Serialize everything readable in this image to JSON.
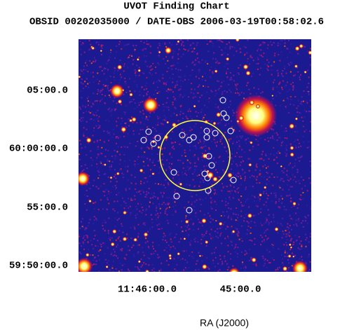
{
  "header": {
    "title": "UVOT Finding Chart",
    "subtitle": "OBSID 00202035000 / DATE-OBS 2006-03-19T00:58:02.6"
  },
  "axes": {
    "y_ticks": [
      "05:00.0",
      "60:00:00.0",
      "55:00.0",
      "59:50:00.0"
    ],
    "x_ticks": [
      "11:46:00.0",
      "45:00.0"
    ],
    "x_label": "RA (J2000)"
  }
}
